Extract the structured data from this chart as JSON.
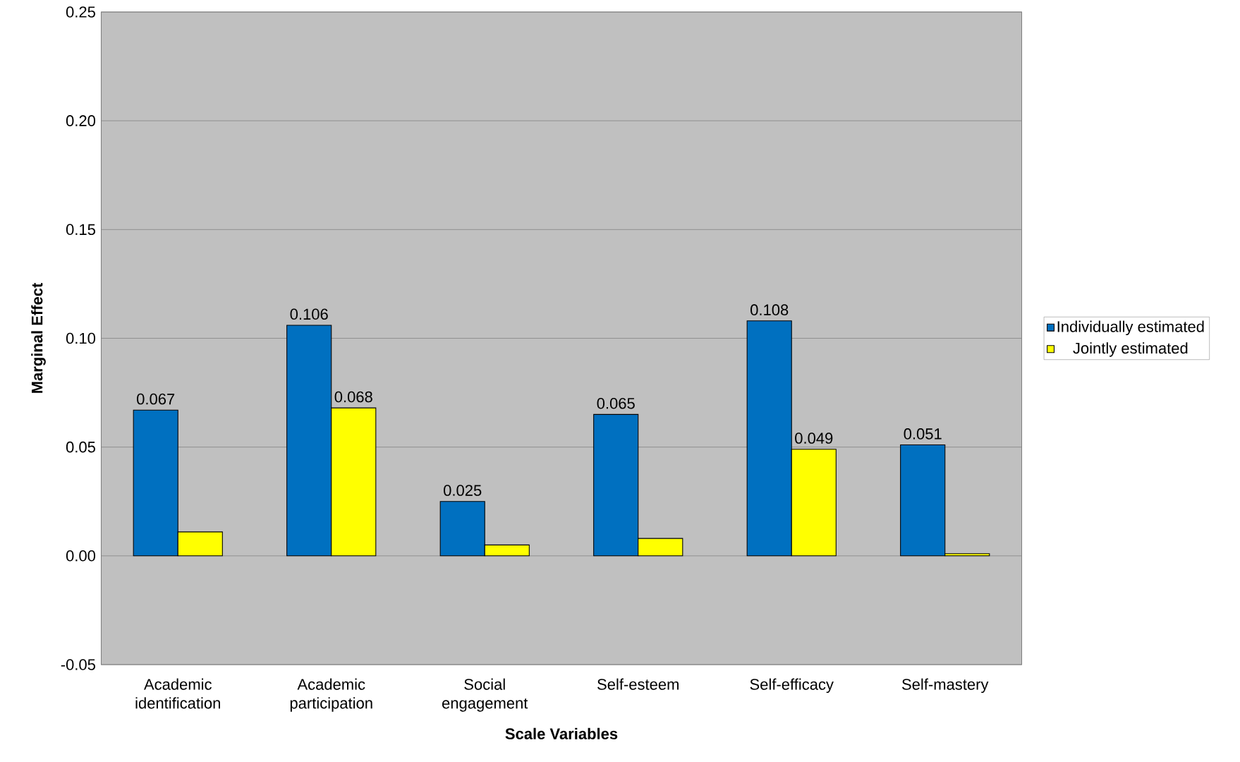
{
  "chart_data": {
    "type": "bar",
    "xlabel": "Scale Variables",
    "ylabel": "Marginal Effect",
    "categories": [
      "Academic identification",
      "Academic participation",
      "Social engagement",
      "Self-esteem",
      "Self-efficacy",
      "Self-mastery"
    ],
    "series": [
      {
        "name": "Individually estimated",
        "color": "#0070c0",
        "values": [
          0.067,
          0.106,
          0.025,
          0.065,
          0.108,
          0.051
        ],
        "value_labels": [
          "0.067",
          "0.106",
          "0.025",
          "0.065",
          "0.108",
          "0.051"
        ]
      },
      {
        "name": "Jointly estimated",
        "color": "#ffff00",
        "values": [
          0.011,
          0.068,
          0.005,
          0.008,
          0.049,
          0.001
        ],
        "value_labels": [
          null,
          "0.068",
          null,
          null,
          "0.049",
          null
        ]
      }
    ],
    "ylim": [
      -0.05,
      0.25
    ],
    "yticks": [
      {
        "value": -0.05,
        "label": "-0.05"
      },
      {
        "value": 0,
        "label": "0.00"
      },
      {
        "value": 0.05,
        "label": "0.05"
      },
      {
        "value": 0.1,
        "label": "0.10"
      },
      {
        "value": 0.15,
        "label": "0.15"
      },
      {
        "value": 0.2,
        "label": "0.20"
      },
      {
        "value": 0.25,
        "label": "0.25"
      }
    ],
    "grid": "y",
    "legend": "right"
  }
}
